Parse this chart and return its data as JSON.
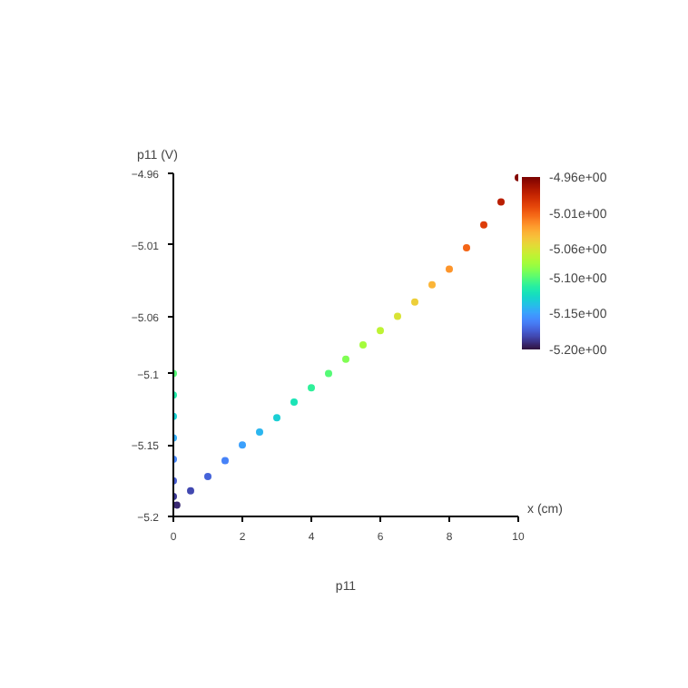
{
  "chart_data": {
    "type": "scatter",
    "title": "p11",
    "xlabel": "x (cm)",
    "ylabel": "p11 (V)",
    "marker": "circle",
    "x": [
      0,
      0,
      0,
      0,
      0,
      0,
      0,
      0.1,
      0.5,
      1,
      1.5,
      2,
      2.5,
      3,
      3.5,
      4,
      4.5,
      5,
      5.5,
      6,
      6.5,
      7,
      7.5,
      8,
      8.5,
      9,
      9.5,
      10
    ],
    "series": [
      {
        "values": [
          -5.1,
          -5.115,
          -5.13,
          -5.145,
          -5.16,
          -5.175,
          -5.186,
          -5.192,
          -5.182,
          -5.172,
          -5.161,
          -5.15,
          -5.141,
          -5.131,
          -5.12,
          -5.11,
          -5.1,
          -5.09,
          -5.08,
          -5.07,
          -5.06,
          -5.05,
          -5.038,
          -5.027,
          -5.012,
          -4.996,
          -4.98,
          -4.963
        ],
        "cvalues": [
          -5.1,
          -5.115,
          -5.13,
          -5.145,
          -5.16,
          -5.175,
          -5.186,
          -5.192,
          -5.182,
          -5.172,
          -5.161,
          -5.15,
          -5.141,
          -5.131,
          -5.12,
          -5.11,
          -5.1,
          -5.09,
          -5.08,
          -5.07,
          -5.06,
          -5.05,
          -5.038,
          -5.027,
          -5.012,
          -4.996,
          -4.98,
          -4.963
        ]
      }
    ],
    "xlim": [
      0,
      10
    ],
    "xticks": [
      0,
      2,
      4,
      6,
      8,
      10
    ],
    "ylim": [
      -5.2,
      -4.96
    ],
    "yticks": [
      -5.2,
      -5.15,
      -5.1,
      -5.06,
      -5.01,
      -4.96
    ],
    "clim": [
      -5.2,
      -4.96
    ],
    "cticks": [
      {
        "value": -5.2,
        "label": "-5.20e+00"
      },
      {
        "value": -5.15,
        "label": "-5.15e+00"
      },
      {
        "value": -5.1,
        "label": "-5.10e+00"
      },
      {
        "value": -5.06,
        "label": "-5.06e+00"
      },
      {
        "value": -5.01,
        "label": "-5.01e+00"
      },
      {
        "value": -4.96,
        "label": "-4.96e+00"
      }
    ],
    "grid": false
  }
}
